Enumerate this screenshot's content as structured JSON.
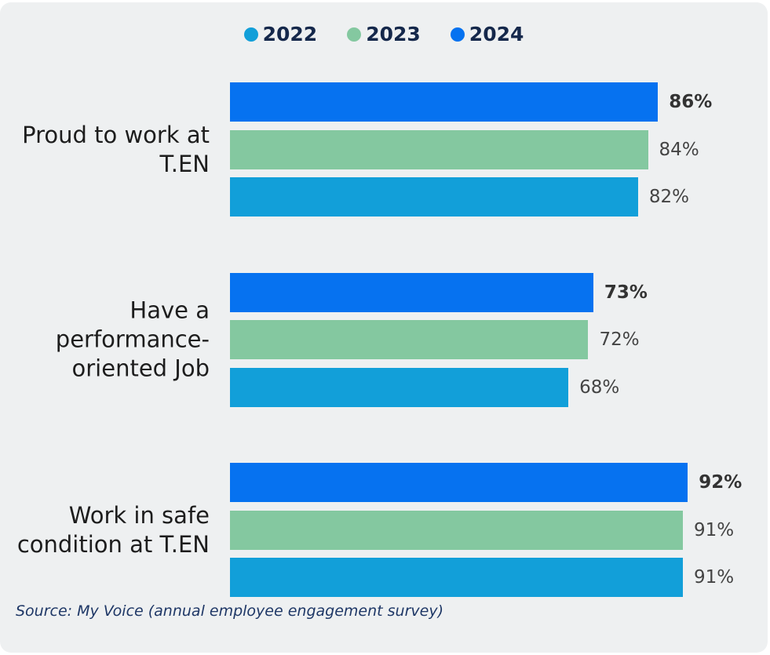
{
  "chart_data": {
    "type": "bar",
    "orientation": "horizontal",
    "categories": [
      "Proud to work at T.EN",
      "Have a performance-oriented Job",
      "Work in safe condition at T.EN"
    ],
    "series": [
      {
        "name": "2022",
        "color": "#129fd9",
        "values": [
          82,
          68,
          91
        ],
        "value_labels": [
          "82%",
          "68%",
          "91%"
        ]
      },
      {
        "name": "2023",
        "color": "#84c8a0",
        "values": [
          84,
          72,
          91
        ],
        "value_labels": [
          "84%",
          "72%",
          "91%"
        ]
      },
      {
        "name": "2024",
        "color": "#0672f0",
        "values": [
          86,
          73,
          92
        ],
        "value_labels": [
          "86%",
          "73%",
          "92%"
        ]
      }
    ],
    "xlim": [
      0,
      100
    ],
    "legend": "top",
    "source": "Source: My Voice (annual employee engagement survey)"
  }
}
